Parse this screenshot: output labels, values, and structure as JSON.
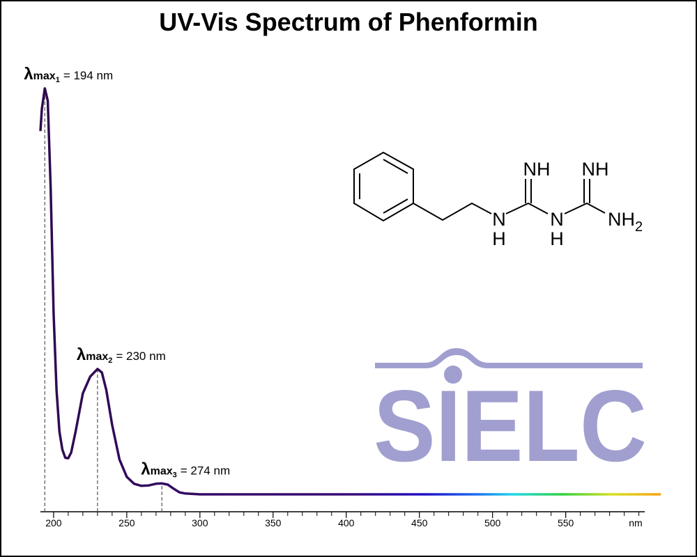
{
  "chart_data": {
    "type": "line",
    "title": "UV-Vis Spectrum of Phenformin",
    "x": [
      191,
      192,
      194,
      196,
      198,
      200,
      202,
      204,
      206,
      208,
      210,
      212,
      215,
      220,
      225,
      230,
      233,
      236,
      240,
      245,
      250,
      255,
      260,
      265,
      270,
      274,
      278,
      282,
      286,
      290,
      300,
      350,
      400,
      450,
      500,
      550,
      600,
      615
    ],
    "values": [
      0.895,
      0.95,
      1.0,
      0.97,
      0.755,
      0.446,
      0.257,
      0.154,
      0.11,
      0.09,
      0.089,
      0.103,
      0.154,
      0.249,
      0.29,
      0.309,
      0.3,
      0.257,
      0.171,
      0.086,
      0.043,
      0.026,
      0.021,
      0.022,
      0.026,
      0.027,
      0.024,
      0.014,
      0.005,
      0.002,
      0,
      0,
      0,
      0,
      0,
      0,
      0,
      0
    ],
    "color": "#2e0a4f",
    "xlim": [
      191,
      604
    ],
    "ylim": [
      0,
      1
    ],
    "xticks": [
      200,
      250,
      300,
      350,
      400,
      450,
      500,
      550
    ],
    "xticks_minor": [
      210,
      220,
      230,
      240,
      260,
      270,
      280,
      290,
      310,
      320,
      330,
      340,
      360,
      370,
      380,
      390,
      410,
      420,
      430,
      440,
      460,
      470,
      480,
      490,
      510,
      520,
      530,
      540,
      560,
      570,
      580,
      590,
      600
    ],
    "x_unit": "nm",
    "annotations": [
      {
        "x": 194,
        "symbol": "λ",
        "sub": "max",
        "index": "1",
        "text": "= 194 nm"
      },
      {
        "x": 230,
        "symbol": "λ",
        "sub": "max",
        "index": "2",
        "text": "= 230 nm"
      },
      {
        "x": 274,
        "symbol": "λ",
        "sub": "max",
        "index": "3",
        "text": "= 274 nm"
      }
    ]
  },
  "structure": {
    "imine_1": "NH",
    "imine_2": "NH",
    "amine_1_n": "N",
    "amine_1_h": "H",
    "amine_2_n": "N",
    "amine_2_h": "H",
    "amino": "NH",
    "amino_sub": "2"
  },
  "logo": "SIELC"
}
